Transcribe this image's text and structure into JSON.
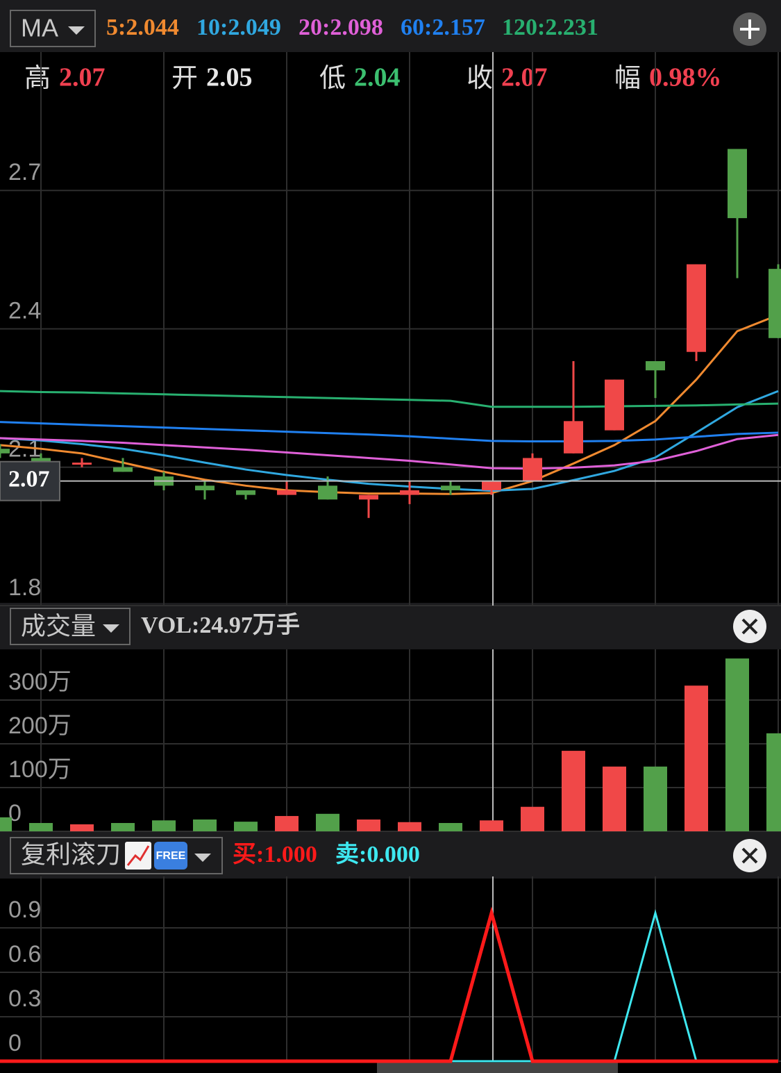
{
  "header": {
    "selector": "MA"
  },
  "quote": [
    {
      "label": "高",
      "value": "2.07",
      "color": "#f04050"
    },
    {
      "label": "开",
      "value": "2.05",
      "color": "#e8e8e8"
    },
    {
      "label": "低",
      "value": "2.04",
      "color": "#3cc070"
    },
    {
      "label": "收",
      "value": "2.07",
      "color": "#f04050"
    },
    {
      "label": "幅",
      "value": "0.98%",
      "color": "#f04050"
    }
  ],
  "chart_data": [
    {
      "type": "candlestick",
      "up_color": "#f04848",
      "down_color": "#52a04a",
      "open": [
        2.14,
        2.12,
        2.11,
        2.1,
        2.08,
        2.06,
        2.05,
        2.04,
        2.06,
        2.03,
        2.04,
        2.06,
        2.05,
        2.07,
        2.13,
        2.18,
        2.33,
        2.35,
        2.79,
        2.53
      ],
      "high": [
        2.15,
        2.13,
        2.12,
        2.12,
        2.09,
        2.07,
        2.05,
        2.07,
        2.08,
        2.04,
        2.07,
        2.07,
        2.07,
        2.13,
        2.33,
        2.29,
        2.33,
        2.54,
        2.79,
        2.54
      ],
      "low": [
        2.12,
        2.1,
        2.1,
        2.09,
        2.05,
        2.03,
        2.03,
        2.04,
        2.03,
        1.99,
        2.02,
        2.04,
        2.04,
        2.07,
        2.13,
        2.18,
        2.25,
        2.33,
        2.51,
        2.38
      ],
      "close": [
        2.13,
        2.11,
        2.11,
        2.09,
        2.06,
        2.05,
        2.04,
        2.05,
        2.03,
        2.04,
        2.05,
        2.05,
        2.07,
        2.12,
        2.2,
        2.29,
        2.31,
        2.54,
        2.64,
        2.38
      ],
      "series": [
        {
          "name": "5:2.044",
          "color": "#f08a30",
          "values": [
            2.148,
            2.14,
            2.13,
            2.11,
            2.09,
            2.073,
            2.06,
            2.05,
            2.046,
            2.043,
            2.043,
            2.042,
            2.044,
            2.07,
            2.108,
            2.148,
            2.2,
            2.29,
            2.395,
            2.43
          ]
        },
        {
          "name": "10:2.049",
          "color": "#30a8e0",
          "values": [
            2.163,
            2.158,
            2.15,
            2.14,
            2.126,
            2.11,
            2.095,
            2.083,
            2.073,
            2.064,
            2.058,
            2.053,
            2.049,
            2.053,
            2.072,
            2.092,
            2.121,
            2.175,
            2.23,
            2.265
          ]
        },
        {
          "name": "20:2.098",
          "color": "#e060d8",
          "values": [
            2.163,
            2.16,
            2.157,
            2.153,
            2.148,
            2.143,
            2.138,
            2.132,
            2.126,
            2.12,
            2.114,
            2.106,
            2.098,
            2.097,
            2.099,
            2.104,
            2.114,
            2.135,
            2.161,
            2.17
          ]
        },
        {
          "name": "60:2.157",
          "color": "#2080f0",
          "values": [
            2.198,
            2.195,
            2.192,
            2.189,
            2.186,
            2.183,
            2.18,
            2.177,
            2.174,
            2.171,
            2.167,
            2.162,
            2.157,
            2.156,
            2.156,
            2.157,
            2.16,
            2.166,
            2.172,
            2.175
          ]
        },
        {
          "name": "120:2.231",
          "color": "#28b070",
          "values": [
            2.265,
            2.263,
            2.262,
            2.26,
            2.258,
            2.256,
            2.254,
            2.252,
            2.25,
            2.248,
            2.246,
            2.244,
            2.231,
            2.231,
            2.231,
            2.232,
            2.233,
            2.234,
            2.236,
            2.238
          ]
        }
      ],
      "ylim": [
        1.8,
        3.0
      ],
      "yticks": [
        2.7,
        2.4,
        2.1,
        1.8
      ],
      "grid": true,
      "crosshair": 2.07
    },
    {
      "type": "bar",
      "selector": "成交量",
      "title": "VOL:24.97万手",
      "values": [
        32,
        19,
        16,
        19,
        25,
        27,
        22,
        35,
        40,
        27,
        21,
        19,
        24.97,
        56,
        184,
        148,
        148,
        333,
        395,
        224
      ],
      "ylim": [
        0,
        400
      ],
      "yticks": [
        {
          "value": 300,
          "label": "300万"
        },
        {
          "value": 200,
          "label": "200万"
        },
        {
          "value": 100,
          "label": "100万"
        },
        0
      ],
      "grid": true
    },
    {
      "type": "line",
      "selector": "复利滚刀",
      "badge": "FREE",
      "series": [
        {
          "name": "卖:0.000",
          "color": "#3ee8f0",
          "values": [
            0,
            0,
            0,
            0,
            0,
            0,
            0,
            0,
            0,
            0,
            0,
            0,
            0,
            0,
            0,
            0,
            1,
            0,
            0,
            0
          ]
        },
        {
          "name": "买:1.000",
          "color": "#ff1a1a",
          "values": [
            0,
            0,
            0,
            0,
            0,
            0,
            0,
            0,
            0,
            0,
            0,
            0,
            1,
            0,
            0,
            0,
            0,
            0,
            0,
            0
          ]
        }
      ],
      "ylim": [
        0,
        1.2
      ],
      "yticks": [
        0.9,
        0.6,
        0.3,
        0
      ],
      "grid": true
    }
  ]
}
